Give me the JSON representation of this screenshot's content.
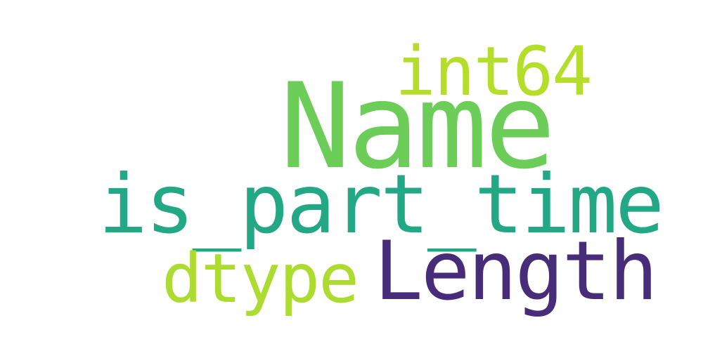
{
  "word_cloud": {
    "words": [
      {
        "text": "Name",
        "color": "#6cce59"
      },
      {
        "text": "int64",
        "color": "#b5de2b"
      },
      {
        "text": "is_part_time",
        "color": "#22a884"
      },
      {
        "text": "Length",
        "color": "#472c7a"
      },
      {
        "text": "dtype",
        "color": "#addc30"
      }
    ]
  }
}
